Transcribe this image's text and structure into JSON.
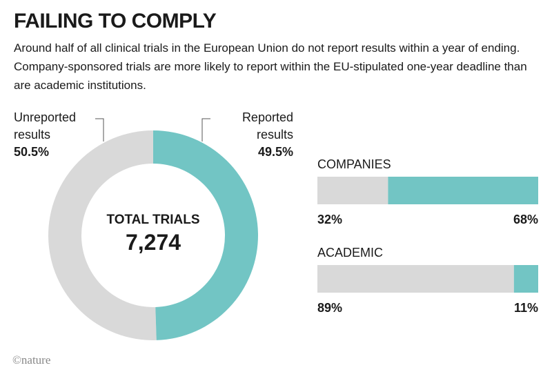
{
  "title": "FAILING TO COMPLY",
  "subtitle": "Around half of all clinical trials in the European Union do not report results within a year of ending. Company-sponsored trials are more likely to report within the EU-stipulated one-year deadline than are academic institutions.",
  "credit": "©nature",
  "chart_data": [
    {
      "type": "donut",
      "categories": [
        "Unreported results",
        "Reported results"
      ],
      "values": [
        50.5,
        49.5
      ],
      "value_labels": [
        "50.5%",
        "49.5%"
      ],
      "colors": [
        "#d9d9d9",
        "#72c5c4"
      ],
      "center_label": "TOTAL TRIALS",
      "total": 7274,
      "total_label": "7,274"
    },
    {
      "type": "bar",
      "orientation": "horizontal",
      "stacked": true,
      "title": "COMPANIES",
      "series": [
        {
          "color": "#d9d9d9",
          "values": [
            32
          ],
          "value_labels": [
            "32%"
          ]
        },
        {
          "color": "#72c5c4",
          "values": [
            68
          ],
          "value_labels": [
            "68%"
          ]
        }
      ]
    },
    {
      "type": "bar",
      "orientation": "horizontal",
      "stacked": true,
      "title": "ACADEMIC",
      "series": [
        {
          "color": "#d9d9d9",
          "values": [
            89
          ],
          "value_labels": [
            "89%"
          ]
        },
        {
          "color": "#72c5c4",
          "values": [
            11
          ],
          "value_labels": [
            "11%"
          ]
        }
      ]
    }
  ]
}
